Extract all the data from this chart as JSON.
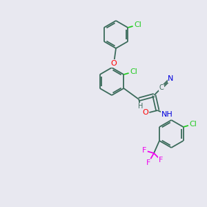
{
  "background_color": "#e8e8f0",
  "bond_color": "#3a6a5a",
  "atom_colors": {
    "O": "#ff0000",
    "N": "#0000dd",
    "Cl": "#22cc22",
    "F": "#ee00ee",
    "C": "#3a6a5a",
    "H": "#3a6a5a"
  },
  "lw": 1.3,
  "fs": 8.0,
  "r_ring": 20,
  "figsize": [
    3.0,
    3.0
  ],
  "dpi": 100
}
